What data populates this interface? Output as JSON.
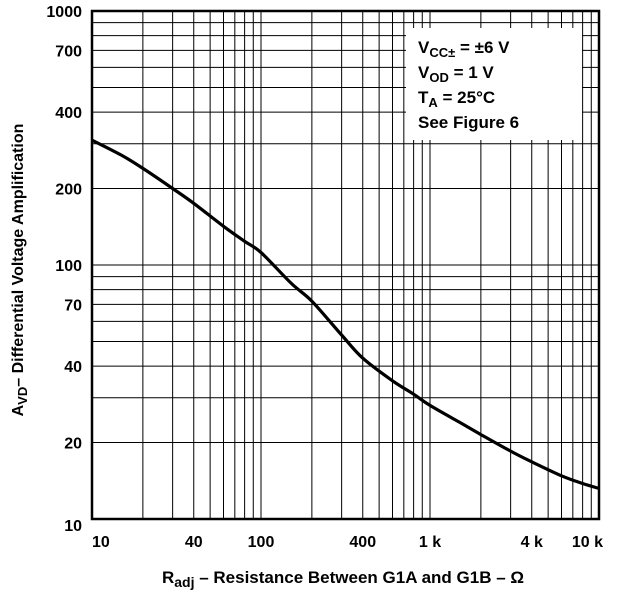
{
  "chart_data": {
    "type": "line",
    "xscale": "log",
    "yscale": "log",
    "xlim": [
      10,
      10000
    ],
    "ylim": [
      10,
      1000
    ],
    "grid": true,
    "x_ticks": [
      {
        "value": 10,
        "label": "10"
      },
      {
        "value": 40,
        "label": "40"
      },
      {
        "value": 100,
        "label": "100"
      },
      {
        "value": 400,
        "label": "400"
      },
      {
        "value": 1000,
        "label": "1 k"
      },
      {
        "value": 4000,
        "label": "4 k"
      },
      {
        "value": 10000,
        "label": "10 k"
      }
    ],
    "y_ticks": [
      {
        "value": 1000,
        "label": "1000"
      },
      {
        "value": 700,
        "label": "700"
      },
      {
        "value": 400,
        "label": "400"
      },
      {
        "value": 200,
        "label": "200"
      },
      {
        "value": 100,
        "label": "100"
      },
      {
        "value": 70,
        "label": "70"
      },
      {
        "value": 40,
        "label": "40"
      },
      {
        "value": 20,
        "label": "20"
      },
      {
        "value": 10,
        "label": "10"
      }
    ],
    "xlabel": {
      "main": "R",
      "sub": "adj",
      "rest": " – Resistance Between G1A and G1B – Ω"
    },
    "ylabel": {
      "main": "A",
      "sub": "VD",
      "rest": "– Differential Voltage Amplification"
    },
    "annotations": [
      {
        "main": "V",
        "sub": "CC±",
        "rest": "  = ±6 V"
      },
      {
        "main": "V",
        "sub": "OD",
        "rest": " = 1 V"
      },
      {
        "main": "T",
        "sub": "A",
        "rest": " = 25°C"
      },
      {
        "main": "See Figure 6",
        "sub": "",
        "rest": ""
      }
    ],
    "series": [
      {
        "x": [
          10,
          15,
          20,
          30,
          40,
          60,
          80,
          100,
          150,
          200,
          300,
          400,
          600,
          800,
          1000,
          1500,
          2000,
          3000,
          4000,
          6000,
          8000,
          10000
        ],
        "y": [
          310,
          270,
          240,
          200,
          175,
          142,
          124,
          112,
          85,
          72,
          53,
          43,
          35,
          31,
          28,
          24,
          21.5,
          18.5,
          16.8,
          14.8,
          13.8,
          13.2
        ]
      }
    ]
  }
}
